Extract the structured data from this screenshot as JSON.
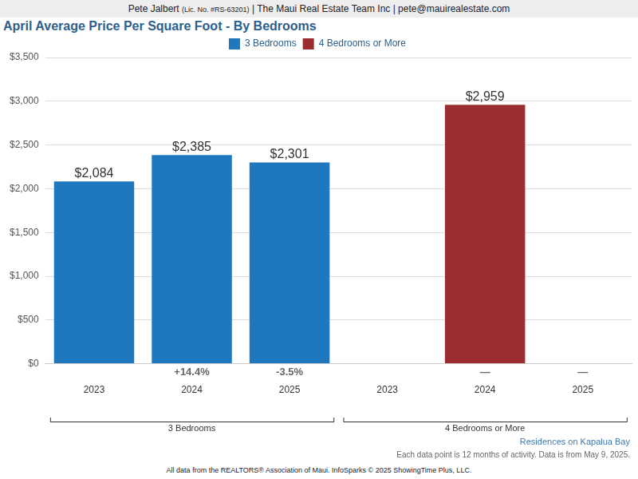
{
  "header": [
    "Pete Jalbert",
    "(Lic. No. #RS-63201)",
    "| The Maui Real Estate Team Inc | pete@mauirealestate.com"
  ],
  "chart_data": {
    "type": "bar",
    "title": "April Average Price Per Square Foot - By Bedrooms",
    "categories": [
      "2023",
      "2024",
      "2025",
      "2023",
      "2024",
      "2025"
    ],
    "category_groups": [
      "3 Bedrooms",
      "3 Bedrooms",
      "3 Bedrooms",
      "4 Bedrooms or More",
      "4 Bedrooms or More",
      "4 Bedrooms or More"
    ],
    "series": [
      {
        "name": "3 Bedrooms",
        "color": "#1f77bd",
        "values": [
          2084,
          2385,
          2301,
          null,
          null,
          null
        ],
        "value_labels": [
          "$2,084",
          "$2,385",
          "$2,301",
          null,
          null,
          null
        ],
        "changes": [
          null,
          "+14.4%",
          "-3.5%",
          null,
          null,
          null
        ]
      },
      {
        "name": "4 Bedrooms or More",
        "color": "#9b2d30",
        "values": [
          null,
          null,
          null,
          null,
          2959,
          null
        ],
        "value_labels": [
          null,
          null,
          null,
          null,
          "$2,959",
          null
        ],
        "changes": [
          null,
          null,
          null,
          null,
          "—",
          "—"
        ]
      }
    ],
    "ylim": [
      0,
      3500
    ],
    "yticks": [
      {
        "value": 0,
        "label": "$0"
      },
      {
        "value": 500,
        "label": "$500"
      },
      {
        "value": 1000,
        "label": "$1,000"
      },
      {
        "value": 1500,
        "label": "$1,500"
      },
      {
        "value": 2000,
        "label": "$2,000"
      },
      {
        "value": 2500,
        "label": "$2,500"
      },
      {
        "value": 3000,
        "label": "$3,000"
      },
      {
        "value": 3500,
        "label": "$3,500"
      }
    ],
    "grid": true,
    "legend": "top",
    "data_labels": true
  },
  "source": "Residences on Kapalua Bay",
  "note": "Each data point is 12 months of activity. Data is from May 9, 2025.",
  "credit": "All data from the REALTORS® Association of Maui. InfoSparks © 2025 ShowingTime Plus, LLC."
}
